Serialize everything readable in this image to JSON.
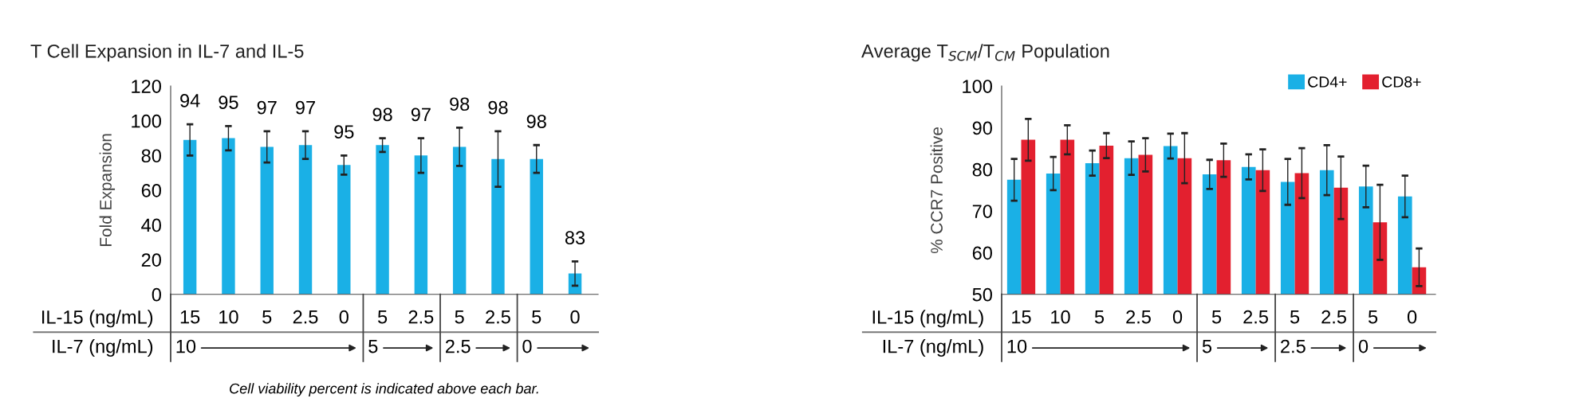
{
  "chart_data": [
    {
      "type": "bar",
      "title": "T Cell Expansion in IL-7 and IL-5",
      "ylabel": "Fold Expansion",
      "categories": [
        "15",
        "10",
        "5",
        "2.5",
        "0",
        "5",
        "2.5",
        "5",
        "2.5",
        "5",
        "0"
      ],
      "series": [
        {
          "color": "#1ab0e6",
          "values": [
            89,
            90,
            85,
            86,
            74.5,
            86,
            80,
            85,
            78,
            78,
            12
          ],
          "errors": [
            9,
            7,
            9,
            8,
            5.5,
            4,
            10,
            11,
            16,
            8,
            7
          ]
        }
      ],
      "ylim": [
        0,
        120
      ],
      "yticks": [
        0,
        20,
        40,
        60,
        80,
        100,
        120
      ],
      "annotations": [
        "IL-15 (ng/mL)",
        "IL-7 (ng/mL)",
        "10",
        "5",
        "2.5",
        "0",
        "Cell viability percent is indicated above each bar.",
        "94",
        "95",
        "97",
        "97",
        "95",
        "98",
        "97",
        "98",
        "98",
        "98",
        "83"
      ]
    },
    {
      "type": "bar",
      "title": "Average T$_{SCM}$/T$_{CM}$ Population",
      "ylabel": "% CCR7 Positive",
      "categories": [
        "15",
        "10",
        "5",
        "2.5",
        "0",
        "5",
        "2.5",
        "5",
        "2.5",
        "5",
        "0"
      ],
      "series": [
        {
          "name": "CD4+",
          "color": "#1ab0e6",
          "values": [
            77.5,
            79,
            81.5,
            82.7,
            85.6,
            78.8,
            80.6,
            77,
            79.8,
            75.9,
            73.5
          ],
          "errors": [
            5,
            4,
            3,
            4,
            3,
            3.5,
            3,
            5.5,
            6,
            5,
            5
          ]
        },
        {
          "name": "CD8+",
          "color": "#e3202f",
          "values": [
            87.1,
            87.1,
            85.7,
            83.5,
            82.7,
            82.2,
            79.8,
            79.1,
            75.6,
            67.3,
            56.5
          ],
          "errors": [
            5,
            3.5,
            3,
            4,
            6,
            4,
            5,
            6,
            7.5,
            9,
            4.5
          ]
        }
      ],
      "ylim": [
        50,
        100
      ],
      "yticks": [
        50,
        60,
        70,
        80,
        90,
        100
      ],
      "legend": "top right",
      "annotations": [
        "IL-15 (ng/mL)",
        "IL-7 (ng/mL)",
        "10",
        "5",
        "2.5",
        "0"
      ]
    }
  ]
}
